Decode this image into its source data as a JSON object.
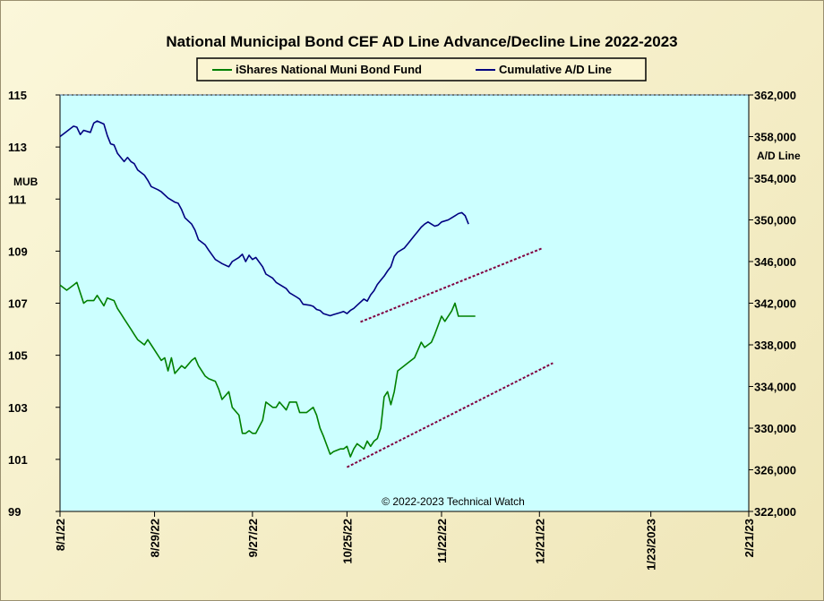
{
  "chart_data": {
    "type": "line",
    "title": "National Municipal Bond CEF AD Line Advance/Decline Line 2022-2023",
    "left_axis_label": "MUB",
    "right_axis_label": "A/D Line",
    "copyright": "© 2022-2023 Technical Watch",
    "colors": {
      "plot_bg": "#ccffff",
      "fund": "#008000",
      "ad": "#000080",
      "trend": "#800040"
    },
    "x_tick_labels": [
      "8/1/22",
      "8/29/22",
      "9/27/22",
      "10/25/22",
      "11/22/22",
      "12/21/22",
      "1/23/2023",
      "2/21/23"
    ],
    "left_ticks": [
      "115",
      "113",
      "111",
      "109",
      "107",
      "105",
      "103",
      "101",
      "99"
    ],
    "right_ticks": [
      "362,000",
      "358,000",
      "354,000",
      "350,000",
      "346,000",
      "342,000",
      "338,000",
      "334,000",
      "330,000",
      "326,000",
      "322,000"
    ],
    "ylim_left": [
      99,
      115
    ],
    "ylim_right": [
      322000,
      362000
    ],
    "x_range_days": [
      0,
      204
    ],
    "x_tick_days": [
      0,
      28,
      57,
      85,
      113,
      142,
      175,
      204
    ],
    "series": [
      {
        "name": "iShares National Muni Bond Fund",
        "axis": "left",
        "x": [
          0,
          2,
          4,
          5,
          7,
          8,
          10,
          11,
          13,
          14,
          16,
          17,
          18,
          19,
          21,
          22,
          23,
          25,
          26,
          27,
          29,
          30,
          31,
          32,
          33,
          34,
          36,
          37,
          39,
          40,
          41,
          43,
          44,
          46,
          47,
          48,
          50,
          51,
          53,
          54,
          55,
          56,
          57,
          58,
          60,
          61,
          63,
          64,
          65,
          67,
          68,
          70,
          71,
          72,
          73,
          75,
          76,
          77,
          78,
          80,
          81,
          83,
          84,
          85,
          86,
          87,
          88,
          90,
          91,
          92,
          93,
          94,
          95,
          96,
          97,
          98,
          99,
          100,
          102,
          103,
          104,
          105,
          106,
          107,
          108,
          109,
          110,
          111,
          113,
          114,
          116,
          117,
          118,
          119,
          120,
          121,
          122,
          123
        ],
        "values": [
          107.7,
          107.5,
          107.7,
          107.8,
          107.0,
          107.1,
          107.1,
          107.3,
          106.9,
          107.2,
          107.1,
          106.8,
          106.6,
          106.4,
          106.0,
          105.8,
          105.6,
          105.4,
          105.6,
          105.4,
          105.0,
          104.8,
          104.9,
          104.4,
          104.9,
          104.3,
          104.6,
          104.5,
          104.8,
          104.9,
          104.6,
          104.2,
          104.1,
          104.0,
          103.7,
          103.3,
          103.6,
          103.0,
          102.7,
          102.0,
          102.0,
          102.1,
          102.0,
          102.0,
          102.5,
          103.2,
          103.0,
          103.0,
          103.2,
          102.9,
          103.2,
          103.2,
          102.8,
          102.8,
          102.8,
          103.0,
          102.7,
          102.2,
          101.9,
          101.2,
          101.3,
          101.4,
          101.4,
          101.5,
          101.1,
          101.4,
          101.6,
          101.4,
          101.7,
          101.5,
          101.7,
          101.8,
          102.2,
          103.4,
          103.6,
          103.1,
          103.6,
          104.4,
          104.6,
          104.7,
          104.8,
          104.9,
          105.2,
          105.5,
          105.3,
          105.4,
          105.5,
          105.8,
          106.5,
          106.3,
          106.7,
          107.0,
          106.5,
          106.5,
          106.5,
          106.5,
          106.5,
          106.5
        ]
      },
      {
        "name": "Cumulative A/D Line",
        "axis": "right",
        "x": [
          0,
          2,
          4,
          5,
          6,
          7,
          9,
          10,
          11,
          13,
          14,
          15,
          16,
          17,
          19,
          20,
          21,
          22,
          23,
          25,
          26,
          27,
          29,
          30,
          31,
          32,
          34,
          35,
          36,
          37,
          39,
          40,
          41,
          43,
          44,
          46,
          47,
          48,
          50,
          51,
          53,
          54,
          55,
          56,
          57,
          58,
          60,
          61,
          63,
          64,
          65,
          67,
          68,
          70,
          71,
          72,
          74,
          75,
          76,
          77,
          78,
          80,
          81,
          83,
          84,
          85,
          86,
          87,
          88,
          90,
          91,
          92,
          93,
          94,
          95,
          96,
          97,
          98,
          99,
          100,
          102,
          103,
          104,
          105,
          106,
          107,
          108,
          109,
          110,
          111,
          112,
          113,
          115,
          116,
          117,
          118,
          119,
          120,
          121
        ],
        "values": [
          358000,
          358500,
          359000,
          358900,
          358200,
          358600,
          358400,
          359300,
          359500,
          359200,
          358100,
          357300,
          357200,
          356400,
          355600,
          356000,
          355600,
          355400,
          354800,
          354300,
          353800,
          353200,
          352900,
          352700,
          352400,
          352100,
          351700,
          351600,
          351000,
          350200,
          349600,
          349000,
          348100,
          347600,
          347100,
          346200,
          346000,
          345800,
          345500,
          346000,
          346400,
          346700,
          346000,
          346600,
          346200,
          346400,
          345500,
          344800,
          344400,
          344000,
          343800,
          343400,
          343000,
          342600,
          342400,
          341900,
          341800,
          341700,
          341400,
          341300,
          341000,
          340800,
          340900,
          341100,
          341200,
          341000,
          341300,
          341500,
          341800,
          342400,
          342200,
          342800,
          343200,
          343800,
          344200,
          344600,
          345100,
          345500,
          346500,
          346900,
          347300,
          347700,
          348100,
          348500,
          348900,
          349300,
          349600,
          349800,
          349600,
          349400,
          349500,
          349800,
          350000,
          350200,
          350400,
          350600,
          350700,
          350400,
          349600
        ]
      }
    ],
    "trendlines": [
      {
        "axis": "right",
        "from": {
          "x": 89,
          "value": 340200
        },
        "to": {
          "x": 143,
          "value": 347300
        }
      },
      {
        "axis": "left",
        "from": {
          "x": 85,
          "value": 100.7
        },
        "to": {
          "x": 146,
          "value": 104.7
        }
      }
    ]
  }
}
